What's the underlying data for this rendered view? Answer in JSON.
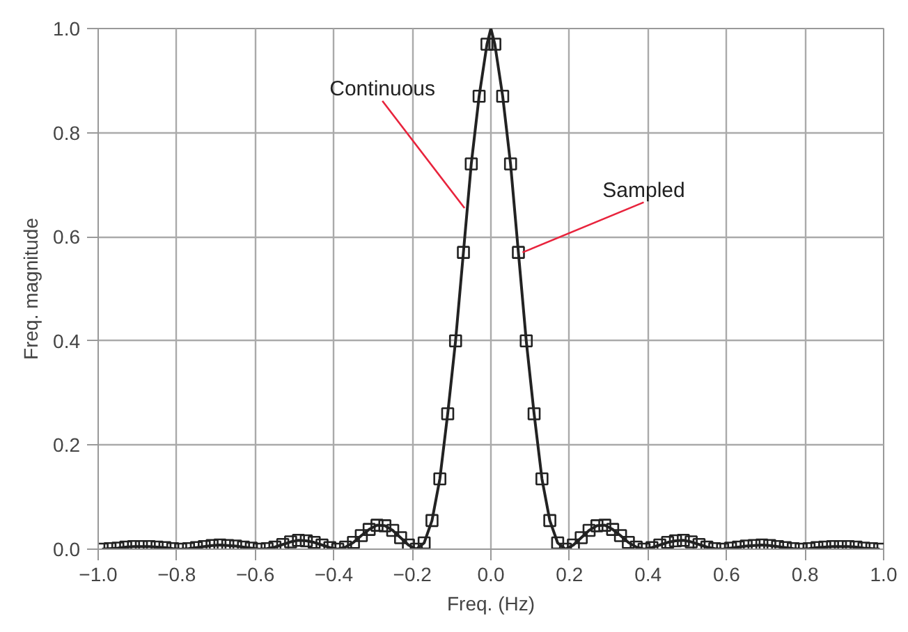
{
  "chart_data": {
    "type": "line",
    "xlabel": "Freq. (Hz)",
    "ylabel": "Freq. magnitude",
    "xlim": [
      -1.0,
      1.0
    ],
    "ylim": [
      0.0,
      1.0
    ],
    "xticks": [
      {
        "value": -1.0,
        "label": "−1.0"
      },
      {
        "value": -0.8,
        "label": "−0.8"
      },
      {
        "value": -0.6,
        "label": "−0.6"
      },
      {
        "value": -0.4,
        "label": "−0.4"
      },
      {
        "value": -0.2,
        "label": "−0.2"
      },
      {
        "value": 0.0,
        "label": "0.0"
      },
      {
        "value": 0.2,
        "label": "0.2"
      },
      {
        "value": 0.4,
        "label": "0.4"
      },
      {
        "value": 0.6,
        "label": "0.6"
      },
      {
        "value": 0.8,
        "label": "0.8"
      },
      {
        "value": 1.0,
        "label": "1.0"
      }
    ],
    "yticks": [
      {
        "value": 0.0,
        "label": "0.0"
      },
      {
        "value": 0.2,
        "label": "0.2"
      },
      {
        "value": 0.4,
        "label": "0.4"
      },
      {
        "value": 0.6,
        "label": "0.6"
      },
      {
        "value": 0.8,
        "label": "0.8"
      },
      {
        "value": 1.0,
        "label": "1.0"
      }
    ],
    "grid": true,
    "series": [
      {
        "color": "#222222",
        "marker": "none",
        "line_style": "solid",
        "x": [
          -0.99,
          -0.97,
          -0.95,
          -0.93,
          -0.91,
          -0.89,
          -0.87,
          -0.85,
          -0.83,
          -0.81,
          -0.79,
          -0.77,
          -0.75,
          -0.73,
          -0.71,
          -0.69,
          -0.67,
          -0.65,
          -0.63,
          -0.61,
          -0.59,
          -0.57,
          -0.55,
          -0.53,
          -0.51,
          -0.49,
          -0.47,
          -0.45,
          -0.43,
          -0.41,
          -0.39,
          -0.37,
          -0.35,
          -0.33,
          -0.31,
          -0.29,
          -0.27,
          -0.25,
          -0.23,
          -0.21,
          -0.19,
          -0.17,
          -0.15,
          -0.13,
          -0.11,
          -0.09,
          -0.07,
          -0.05,
          -0.03,
          -0.01,
          0.0,
          0.01,
          0.03,
          0.05,
          0.07,
          0.09,
          0.11,
          0.13,
          0.15,
          0.17,
          0.19,
          0.21,
          0.23,
          0.25,
          0.27,
          0.29,
          0.31,
          0.33,
          0.35,
          0.37,
          0.39,
          0.41,
          0.43,
          0.45,
          0.47,
          0.49,
          0.51,
          0.53,
          0.55,
          0.57,
          0.59,
          0.61,
          0.63,
          0.65,
          0.67,
          0.69,
          0.71,
          0.73,
          0.75,
          0.77,
          0.79,
          0.81,
          0.83,
          0.85,
          0.87,
          0.89,
          0.91,
          0.93,
          0.95,
          0.97,
          0.99
        ],
        "values": [
          0,
          0.001,
          0.002,
          0.004,
          0.005,
          0.005,
          0.005,
          0.004,
          0.003,
          0.001,
          0,
          0.001,
          0.003,
          0.005,
          0.007,
          0.008,
          0.007,
          0.006,
          0.004,
          0.002,
          0,
          0.001,
          0.004,
          0.009,
          0.014,
          0.017,
          0.016,
          0.013,
          0.008,
          0.003,
          0,
          0.004,
          0.013,
          0.026,
          0.038,
          0.046,
          0.045,
          0.036,
          0.022,
          0.008,
          0,
          0.012,
          0.055,
          0.135,
          0.26,
          0.4,
          0.57,
          0.74,
          0.87,
          0.97,
          1.0,
          0.97,
          0.87,
          0.74,
          0.57,
          0.4,
          0.26,
          0.135,
          0.055,
          0.012,
          0,
          0.008,
          0.022,
          0.036,
          0.045,
          0.046,
          0.038,
          0.026,
          0.013,
          0.004,
          0,
          0.003,
          0.008,
          0.013,
          0.016,
          0.017,
          0.014,
          0.009,
          0.004,
          0.001,
          0,
          0.002,
          0.004,
          0.006,
          0.007,
          0.008,
          0.007,
          0.005,
          0.003,
          0.001,
          0,
          0.001,
          0.003,
          0.004,
          0.005,
          0.005,
          0.005,
          0.004,
          0.002,
          0.001,
          0
        ]
      },
      {
        "type": "scatter",
        "color": "#222222",
        "marker": "square",
        "x": [
          -0.99,
          -0.97,
          -0.95,
          -0.93,
          -0.91,
          -0.89,
          -0.87,
          -0.85,
          -0.83,
          -0.81,
          -0.79,
          -0.77,
          -0.75,
          -0.73,
          -0.71,
          -0.69,
          -0.67,
          -0.65,
          -0.63,
          -0.61,
          -0.59,
          -0.57,
          -0.55,
          -0.53,
          -0.51,
          -0.49,
          -0.47,
          -0.45,
          -0.43,
          -0.41,
          -0.39,
          -0.37,
          -0.35,
          -0.33,
          -0.31,
          -0.29,
          -0.27,
          -0.25,
          -0.23,
          -0.21,
          -0.19,
          -0.17,
          -0.15,
          -0.13,
          -0.11,
          -0.09,
          -0.07,
          -0.05,
          -0.03,
          -0.01,
          0.01,
          0.03,
          0.05,
          0.07,
          0.09,
          0.11,
          0.13,
          0.15,
          0.17,
          0.19,
          0.21,
          0.23,
          0.25,
          0.27,
          0.29,
          0.31,
          0.33,
          0.35,
          0.37,
          0.39,
          0.41,
          0.43,
          0.45,
          0.47,
          0.49,
          0.51,
          0.53,
          0.55,
          0.57,
          0.59,
          0.61,
          0.63,
          0.65,
          0.67,
          0.69,
          0.71,
          0.73,
          0.75,
          0.77,
          0.79,
          0.81,
          0.83,
          0.85,
          0.87,
          0.89,
          0.91,
          0.93,
          0.95,
          0.97,
          0.99
        ],
        "values": [
          0,
          0.001,
          0.002,
          0.004,
          0.005,
          0.005,
          0.005,
          0.004,
          0.003,
          0.001,
          0,
          0.001,
          0.003,
          0.005,
          0.007,
          0.008,
          0.007,
          0.006,
          0.004,
          0.002,
          0,
          0.001,
          0.004,
          0.009,
          0.014,
          0.017,
          0.016,
          0.013,
          0.008,
          0.003,
          0,
          0.004,
          0.013,
          0.026,
          0.038,
          0.046,
          0.045,
          0.036,
          0.022,
          0.008,
          0,
          0.012,
          0.055,
          0.135,
          0.26,
          0.4,
          0.57,
          0.74,
          0.87,
          0.97,
          0.97,
          0.87,
          0.74,
          0.57,
          0.4,
          0.26,
          0.135,
          0.055,
          0.012,
          0,
          0.008,
          0.022,
          0.036,
          0.045,
          0.046,
          0.038,
          0.026,
          0.013,
          0.004,
          0,
          0.003,
          0.008,
          0.013,
          0.016,
          0.017,
          0.014,
          0.009,
          0.004,
          0.001,
          0,
          0.002,
          0.004,
          0.006,
          0.007,
          0.008,
          0.007,
          0.005,
          0.003,
          0.001,
          0,
          0.001,
          0.003,
          0.004,
          0.005,
          0.005,
          0.005,
          0.004,
          0.002,
          0.001,
          0
        ]
      }
    ],
    "annotations": [
      {
        "text": "Continuous",
        "x": -0.06,
        "y": 0.655
      },
      {
        "text": "Sampled",
        "x": 0.07,
        "y": 0.57
      }
    ]
  }
}
